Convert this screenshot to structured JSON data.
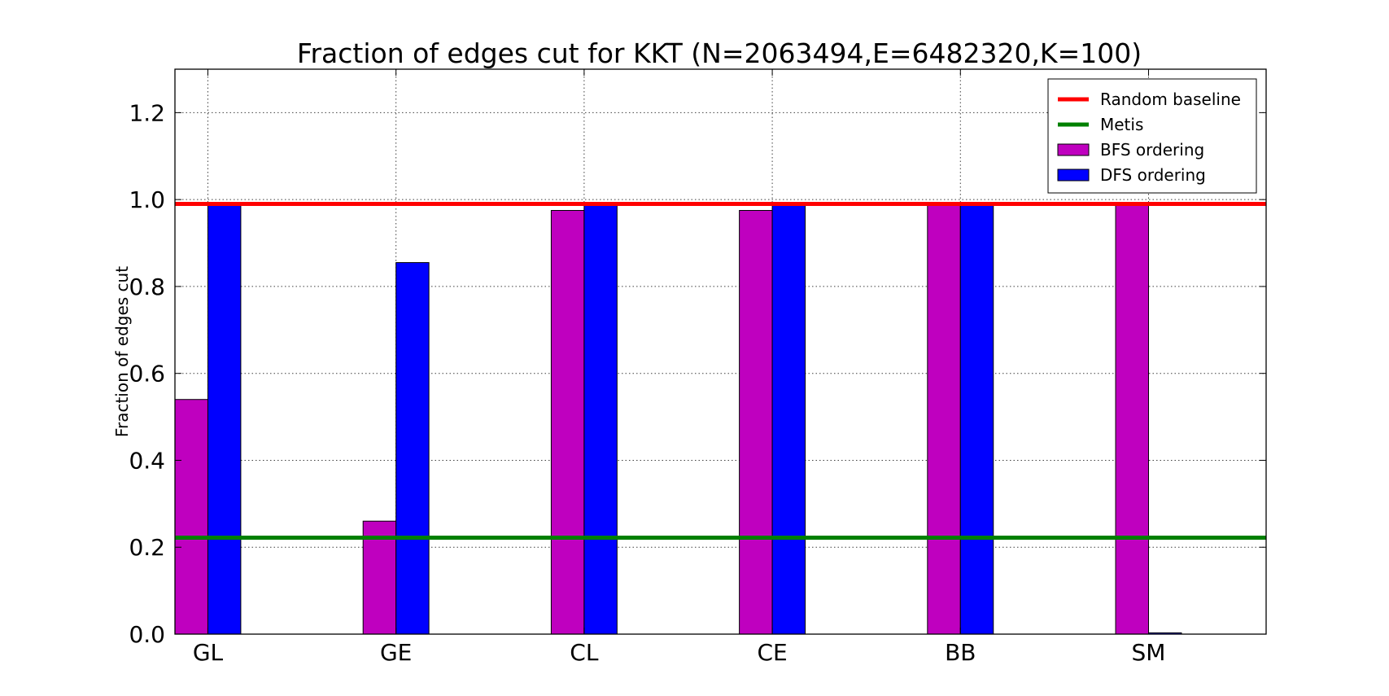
{
  "chart_data": {
    "type": "bar",
    "title": "Fraction of edges cut for KKT  (N=2063494,E=6482320,K=100)",
    "xlabel": "",
    "ylabel": "Fraction of edges cut",
    "categories": [
      "GL",
      "GE",
      "CL",
      "CE",
      "BB",
      "SM"
    ],
    "ylim": [
      0.0,
      1.3
    ],
    "yticks": [
      "0.0",
      "0.2",
      "0.4",
      "0.6",
      "0.8",
      "1.0",
      "1.2"
    ],
    "grid": true,
    "legend_position": "top-right",
    "series": [
      {
        "name": "BFS ordering",
        "color": "#bf00bf",
        "values": [
          0.54,
          0.26,
          0.975,
          0.975,
          0.99,
          0.99
        ]
      },
      {
        "name": "DFS ordering",
        "color": "#0000ff",
        "values": [
          0.99,
          0.855,
          0.99,
          0.99,
          0.99,
          0.003
        ]
      }
    ],
    "reference_lines": [
      {
        "name": "Random baseline",
        "value": 0.99,
        "color": "#ff0000"
      },
      {
        "name": "Metis",
        "value": 0.222,
        "color": "#008000"
      }
    ]
  }
}
